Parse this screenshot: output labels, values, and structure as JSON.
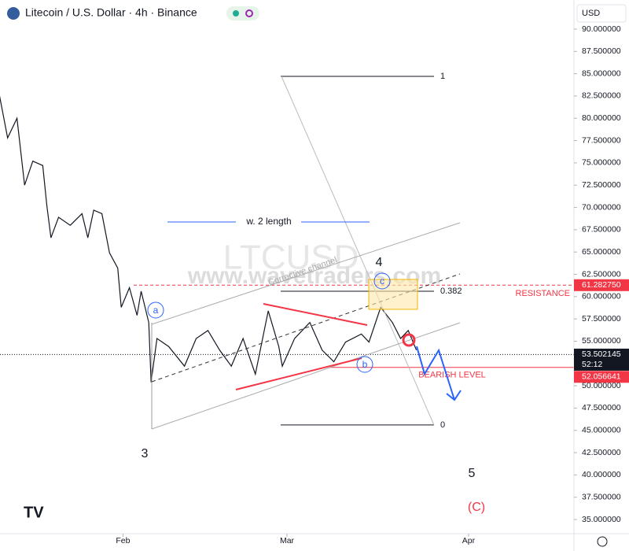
{
  "chart_data": {
    "type": "line",
    "title": "Litecoin / U.S. Dollar · 4h · Binance",
    "currency": "USD",
    "watermark": "www.wavetraders.com",
    "symbol_watermark": "LTCUSD",
    "color": "#131722",
    "x": [
      -21.1,
      -19.7,
      -18.1,
      -16.8,
      -15.4,
      -13.7,
      -13.0,
      -12.3,
      -11.0,
      -9.0,
      -7.0,
      -6.0,
      -5.0,
      -3.6,
      -2.3,
      -0.9,
      -0.3,
      1.1,
      2.4,
      3.1,
      4.4,
      4.8,
      5.8,
      7.8,
      10.5,
      12.5,
      14.5,
      16.5,
      18.5,
      20.5,
      22.6,
      24.8,
      26.6,
      27.2,
      29.3,
      31.9,
      34.0,
      36.0,
      38.0,
      40.7,
      42.0,
      44.0,
      46.0,
      47.4,
      48.7,
      50.1
    ],
    "values": [
      82.6,
      77.8,
      80.0,
      72.5,
      75.2,
      74.7,
      70.2,
      66.6,
      68.9,
      68.0,
      69.3,
      66.6,
      69.7,
      69.3,
      64.9,
      63.2,
      58.8,
      61.0,
      57.9,
      60.6,
      57.1,
      50.4,
      55.3,
      54.4,
      52.2,
      55.3,
      56.2,
      54.0,
      52.2,
      55.3,
      51.3,
      58.4,
      54.4,
      52.2,
      55.3,
      57.1,
      54.0,
      52.7,
      54.9,
      55.8,
      54.9,
      58.8,
      57.1,
      55.3,
      56.2,
      54.0
    ],
    "xlim": [
      -21,
      77
    ],
    "ylim": [
      35,
      90
    ],
    "xticks": [
      {
        "value": 0,
        "label": "Feb"
      },
      {
        "value": 28,
        "label": "Mar"
      },
      {
        "value": 59,
        "label": "Apr"
      }
    ],
    "yticks": [
      {
        "value": 35,
        "label": "35.000000"
      },
      {
        "value": 37.5,
        "label": "37.500000"
      },
      {
        "value": 40,
        "label": "40.000000"
      },
      {
        "value": 42.5,
        "label": "42.500000"
      },
      {
        "value": 45,
        "label": "45.000000"
      },
      {
        "value": 47.5,
        "label": "47.500000"
      },
      {
        "value": 50,
        "label": "50.000000"
      },
      {
        "value": 52.5,
        "label": "52.500000"
      },
      {
        "value": 55,
        "label": "55.000000"
      },
      {
        "value": 57.5,
        "label": "57.500000"
      },
      {
        "value": 60,
        "label": "60.000000"
      },
      {
        "value": 62.5,
        "label": "62.500000"
      },
      {
        "value": 65,
        "label": "65.000000"
      },
      {
        "value": 67.5,
        "label": "67.500000"
      },
      {
        "value": 70,
        "label": "70.000000"
      },
      {
        "value": 72.5,
        "label": "72.500000"
      },
      {
        "value": 75,
        "label": "75.000000"
      },
      {
        "value": 77.5,
        "label": "77.500000"
      },
      {
        "value": 80,
        "label": "80.000000"
      },
      {
        "value": 82.5,
        "label": "82.500000"
      },
      {
        "value": 85,
        "label": "85.000000"
      },
      {
        "value": 87.5,
        "label": "87.500000"
      },
      {
        "value": 90,
        "label": "90.000000"
      }
    ],
    "price_lines": [
      {
        "name": "RESISTANCE",
        "value": 61.28275,
        "label": "61.282750",
        "color": "#f23645"
      },
      {
        "value": 53.502145,
        "label": "53.502145",
        "countdown": "52:12",
        "color": "#131722"
      },
      {
        "name": "BEARISH LEVEL",
        "value": 52.056641,
        "label": "52.056641",
        "color": "#f23645"
      }
    ],
    "fib": {
      "levels": [
        1,
        0.382,
        0
      ],
      "prices": [
        84.7,
        60.6,
        45.6
      ]
    },
    "annotations": {
      "measure": "w. 2 length",
      "channel": "Corrective channel",
      "wave_a": "a",
      "wave_b": "b",
      "wave_c": "c",
      "wave_3": "3",
      "wave_4": "4",
      "wave_5": "5",
      "wave_C": "(C)"
    }
  }
}
